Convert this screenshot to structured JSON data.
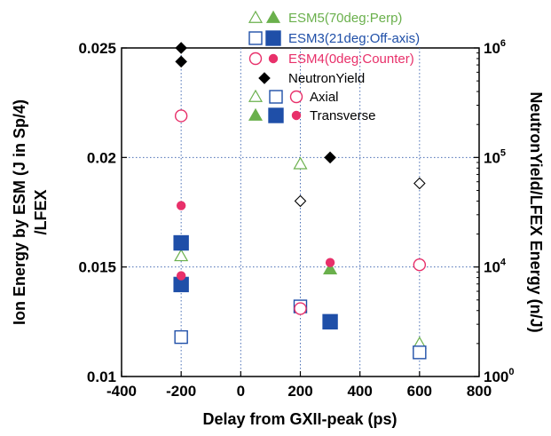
{
  "chart_data": {
    "type": "scatter",
    "xlabel": "Delay from GXII-peak (ps)",
    "ylabel_lines": [
      "Ion Energy by ESM (J in Sp/4)",
      "/LFEX"
    ],
    "y2label": "NeutronYield/LFEX Energy (n/J)",
    "xlim": [
      -400,
      800
    ],
    "ylim": [
      0.01,
      0.025
    ],
    "y2lim_log": [
      1000,
      1000000
    ],
    "x_ticks": [
      "-400",
      "-200",
      "0",
      "200",
      "400",
      "600",
      "800"
    ],
    "y_ticks": [
      "0.01",
      "0.015",
      "0.02",
      "0.025"
    ],
    "y2_ticks": [
      {
        "base": "100",
        "exp": "0"
      },
      {
        "base": "10",
        "exp": "4"
      },
      {
        "base": "10",
        "exp": "5"
      },
      {
        "base": "10",
        "exp": "6"
      }
    ],
    "grid": true,
    "series": [
      {
        "name": "ESM5(70deg:Perp)",
        "color": "#6ab04c",
        "marker": "triangle",
        "axis": "left",
        "axial": [
          [
            -200,
            0.0155
          ],
          [
            200,
            0.0197
          ],
          [
            600,
            0.0115
          ]
        ],
        "transverse": [
          [
            300,
            0.0149
          ]
        ]
      },
      {
        "name": "ESM3(21deg:Off-axis)",
        "color": "#1f4fa8",
        "marker": "square",
        "axis": "left",
        "axial": [
          [
            -200,
            0.0118
          ],
          [
            200,
            0.0132
          ],
          [
            600,
            0.0111
          ]
        ],
        "transverse": [
          [
            -200,
            0.0161
          ],
          [
            -200,
            0.0142
          ],
          [
            300,
            0.0125
          ]
        ]
      },
      {
        "name": "ESM4(0deg:Counter)",
        "color": "#e8306a",
        "marker": "circle",
        "axis": "left",
        "axial": [
          [
            -200,
            0.0219
          ],
          [
            200,
            0.0131
          ],
          [
            600,
            0.0151
          ]
        ],
        "transverse": [
          [
            -200,
            0.0178
          ],
          [
            -200,
            0.0146
          ],
          [
            300,
            0.0152
          ]
        ]
      },
      {
        "name": "NeutronYield",
        "color": "#000000",
        "marker": "diamond",
        "axis": "right",
        "filled": [
          [
            -200,
            1000000
          ],
          [
            -200,
            750000
          ],
          [
            300,
            100000
          ]
        ],
        "open": [
          [
            200,
            40000
          ],
          [
            600,
            58000
          ]
        ]
      }
    ],
    "legend": {
      "position": "top-right",
      "entries": [
        {
          "label": "ESM5(70deg:Perp)",
          "color": "#6ab04c"
        },
        {
          "label": "ESM3(21deg:Off-axis)",
          "color": "#1f4fa8"
        },
        {
          "label": "ESM4(0deg:Counter)",
          "color": "#e8306a"
        },
        {
          "label": "NeutronYield",
          "color": "#000000"
        },
        {
          "label": "Axial",
          "color": "#000000"
        },
        {
          "label": "Transverse",
          "color": "#000000"
        }
      ]
    }
  }
}
